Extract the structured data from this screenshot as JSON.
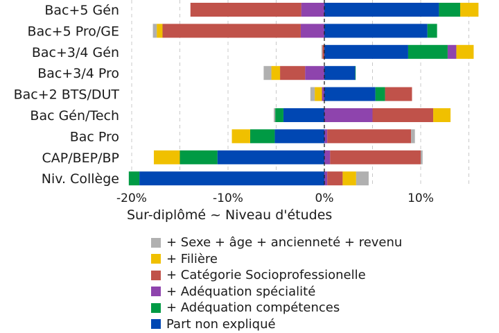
{
  "chart_data": {
    "type": "bar",
    "orientation": "horizontal",
    "stacked": "diverging",
    "title": "Sur-diplômé ~ Niveau d'études",
    "xlabel": "Sur-diplômé ~ Niveau d'études",
    "ylabel": "",
    "xlim": [
      -21,
      17
    ],
    "x_ticks": [
      -20,
      -10,
      0,
      10
    ],
    "x_tick_labels": [
      "-20%",
      "-10%",
      "0%",
      "10%"
    ],
    "gridlines_at": [
      -20,
      -15,
      -10,
      -5,
      0,
      5,
      10,
      15
    ],
    "grid": true,
    "legend_position": "bottom",
    "categories": [
      "Bac+5 Gén",
      "Bac+5 Pro/GE",
      "Bac+3/4 Gén",
      "Bac+3/4 Pro",
      "Bac+2 BTS/DUT",
      "Bac Gén/Tech",
      "Bac Pro",
      "CAP/BEP/BP",
      "Niv. Collège"
    ],
    "series": [
      {
        "name": "Part non expliqué",
        "color": "#0047b3",
        "values": [
          11.9,
          10.7,
          8.7,
          3.2,
          5.3,
          -4.25,
          -5.15,
          -11.1,
          -19.2
        ]
      },
      {
        "name": "+ Adéquation compétences",
        "color": "#009a44",
        "values": [
          2.2,
          1.0,
          4.1,
          0.05,
          1.0,
          -0.85,
          -2.55,
          -3.9,
          -1.1
        ]
      },
      {
        "name": "+ Adéquation spécialité",
        "color": "#8e44ad",
        "values": [
          -2.4,
          -2.45,
          0.9,
          -2.0,
          -0.25,
          5.0,
          0.3,
          0.6,
          0.3
        ]
      },
      {
        "name": "+ Catégorie Socioprofessionelle",
        "color": "#c0524a",
        "values": [
          -11.5,
          -14.35,
          -0.2,
          -2.6,
          2.8,
          6.3,
          8.7,
          9.4,
          1.6
        ]
      },
      {
        "name": "+ Filière",
        "color": "#f0c000",
        "values": [
          1.9,
          -0.6,
          1.8,
          -0.9,
          -0.75,
          1.8,
          -1.9,
          -2.7,
          1.4
        ]
      },
      {
        "name": "+ Sexe + âge + ancienneté + revenu",
        "color": "#b0b0b0",
        "values": [
          0,
          -0.4,
          -0.1,
          -0.8,
          -0.45,
          -0.15,
          0.4,
          0.2,
          1.3
        ]
      }
    ],
    "legend_order": [
      5,
      4,
      3,
      2,
      1,
      0
    ]
  }
}
